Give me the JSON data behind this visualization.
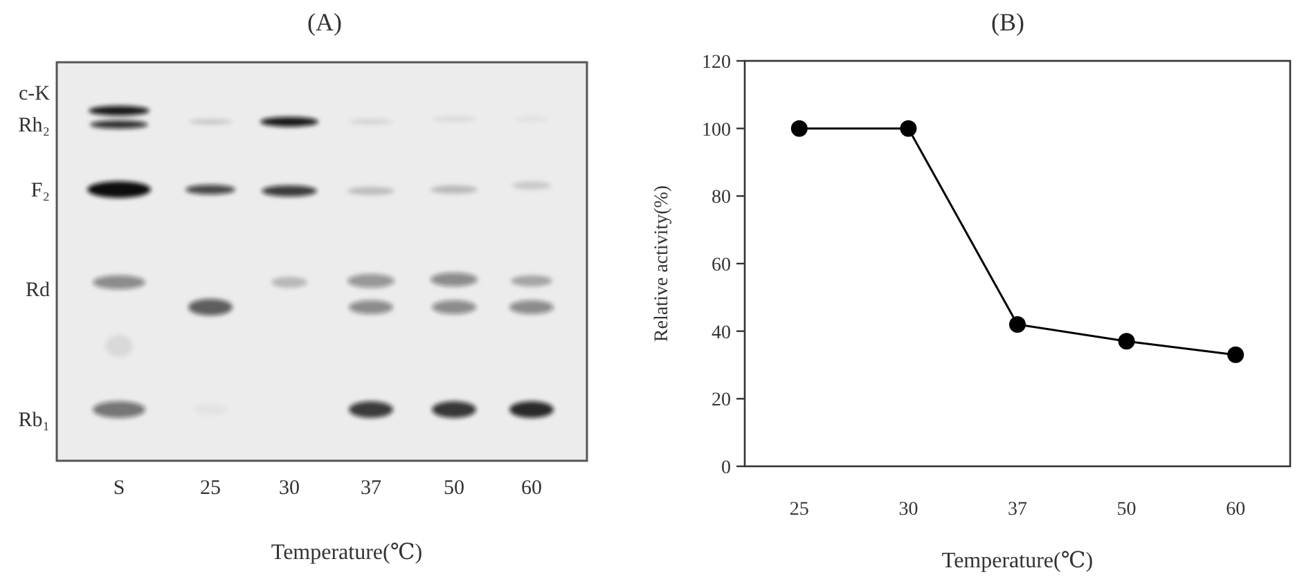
{
  "chart_data": [
    {
      "type": "other",
      "title": "(A)",
      "xlabel": "Temperature(℃)",
      "categories": [
        "S",
        "25",
        "30",
        "37",
        "50",
        "60"
      ],
      "y_categories": [
        "c-K",
        "Rh₂",
        "F₂",
        "Rd",
        "Rb₁"
      ]
    },
    {
      "type": "line",
      "title": "(B)",
      "xlabel": "Temperature(℃)",
      "ylabel": "Relative activity(%)",
      "categories": [
        "25",
        "30",
        "37",
        "50",
        "60"
      ],
      "series": [
        {
          "color": "#000000",
          "values": [
            100,
            100,
            42,
            37,
            33
          ]
        }
      ],
      "ylim": [
        0,
        120
      ],
      "yticks": [
        0,
        20,
        40,
        60,
        80,
        100,
        120
      ],
      "marker": "circle"
    }
  ]
}
